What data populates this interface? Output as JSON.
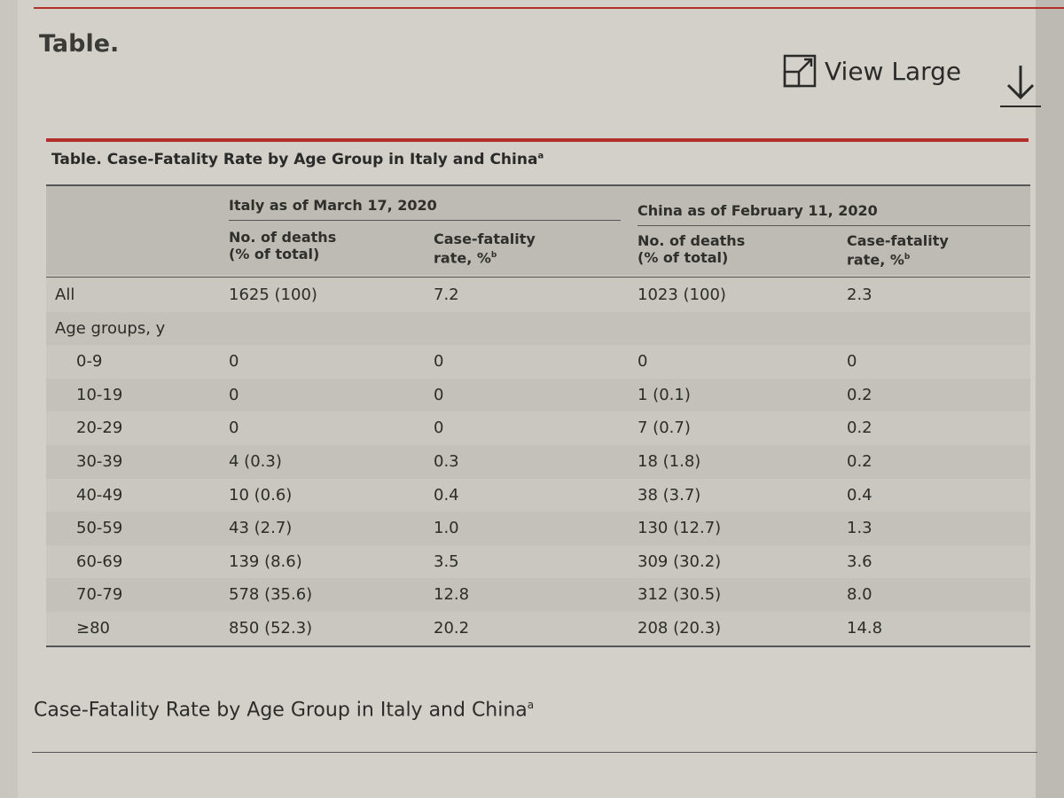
{
  "page": {
    "title": "Table.",
    "view_large": "View Large"
  },
  "table": {
    "caption": "Table. Case-Fatality Rate by Age Group in Italy and China",
    "caption_sup": "a",
    "groups": [
      "Italy as of March 17, 2020",
      "China as of February 11, 2020"
    ],
    "subheaders": [
      "No. of deaths\n(% of total)",
      "Case-fatality\nrate, %",
      "No. of deaths\n(% of total)",
      "Case-fatality\nrate, %"
    ],
    "subheader_sup": "b",
    "rows": [
      {
        "label": "All",
        "italy_deaths": "1625 (100)",
        "italy_rate": "7.2",
        "china_deaths": "1023 (100)",
        "china_rate": "2.3"
      },
      {
        "label": "Age groups, y",
        "italy_deaths": "",
        "italy_rate": "",
        "china_deaths": "",
        "china_rate": ""
      },
      {
        "label": "0-9",
        "italy_deaths": "0",
        "italy_rate": "0",
        "china_deaths": "0",
        "china_rate": "0"
      },
      {
        "label": "10-19",
        "italy_deaths": "0",
        "italy_rate": "0",
        "china_deaths": "1 (0.1)",
        "china_rate": "0.2"
      },
      {
        "label": "20-29",
        "italy_deaths": "0",
        "italy_rate": "0",
        "china_deaths": "7 (0.7)",
        "china_rate": "0.2"
      },
      {
        "label": "30-39",
        "italy_deaths": "4 (0.3)",
        "italy_rate": "0.3",
        "china_deaths": "18 (1.8)",
        "china_rate": "0.2"
      },
      {
        "label": "40-49",
        "italy_deaths": "10 (0.6)",
        "italy_rate": "0.4",
        "china_deaths": "38 (3.7)",
        "china_rate": "0.4"
      },
      {
        "label": "50-59",
        "italy_deaths": "43 (2.7)",
        "italy_rate": "1.0",
        "china_deaths": "130 (12.7)",
        "china_rate": "1.3"
      },
      {
        "label": "60-69",
        "italy_deaths": "139 (8.6)",
        "italy_rate": "3.5",
        "china_deaths": "309 (30.2)",
        "china_rate": "3.6"
      },
      {
        "label": "70-79",
        "italy_deaths": "578 (35.6)",
        "italy_rate": "12.8",
        "china_deaths": "312 (30.5)",
        "china_rate": "8.0"
      },
      {
        "label": "≥80",
        "italy_deaths": "850 (52.3)",
        "italy_rate": "20.2",
        "china_deaths": "208 (20.3)",
        "china_rate": "14.8"
      }
    ]
  },
  "subcaption": {
    "text": "Case-Fatality Rate by Age Group in Italy and China",
    "sup": "a"
  },
  "icons": {
    "view_large": "expand-icon",
    "download": "download-arrow-icon"
  },
  "colors": {
    "accent": "#b2302b",
    "background": "#d2d0c9"
  }
}
